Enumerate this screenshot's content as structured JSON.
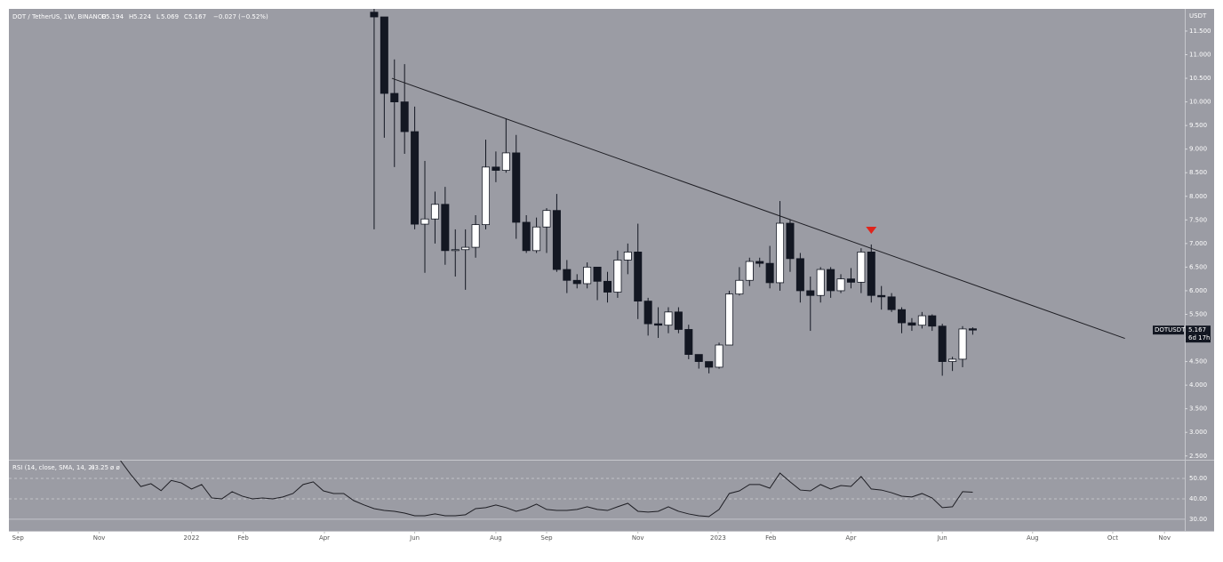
{
  "chart_data": {
    "type": "candlestick",
    "title": "DOT / TetherUS, 1W, BINANCE",
    "change": "−0.027 (−0.52%)",
    "ohlc_letters": [
      "O",
      "H",
      "L",
      "C"
    ],
    "currency": "USDT",
    "symbol": "DOTUSDT",
    "countdown": "6d 17h",
    "up_color": "#ffffff",
    "down_color": "#131722",
    "background": "#9b9ca4",
    "categories": [
      null,
      null,
      null,
      null,
      null,
      null,
      null,
      null,
      null,
      null,
      null,
      null,
      null,
      null,
      null,
      null,
      null,
      null,
      null,
      null,
      null,
      null,
      null,
      null,
      null,
      null,
      null,
      null,
      null,
      null,
      null,
      null,
      null,
      null,
      null,
      null,
      null,
      null,
      null,
      null,
      null,
      null,
      null,
      null,
      null,
      null,
      null,
      null,
      null,
      null,
      null,
      null,
      null,
      null,
      null,
      null,
      null,
      null,
      null,
      null
    ],
    "open": [
      11.9,
      11.8,
      10.18,
      10.0,
      9.37,
      7.41,
      7.52,
      7.83,
      6.85,
      6.87,
      6.92,
      7.4,
      8.62,
      8.55,
      8.92,
      7.45,
      6.85,
      7.35,
      7.7,
      6.45,
      6.22,
      6.15,
      6.5,
      6.2,
      5.97,
      6.65,
      6.82,
      5.78,
      5.3,
      5.27,
      5.55,
      5.18,
      4.65,
      4.5,
      4.38,
      4.85,
      5.93,
      6.22,
      6.62,
      6.58,
      6.17,
      7.43,
      6.68,
      6.0,
      5.9,
      6.45,
      6.0,
      6.25,
      6.18,
      6.82,
      5.9,
      5.87,
      5.6,
      5.32,
      5.27,
      5.47,
      5.25,
      4.5,
      4.55,
      5.194
    ],
    "high": [
      12.05,
      11.8,
      10.9,
      10.8,
      9.9,
      8.75,
      8.1,
      8.2,
      7.3,
      7.3,
      7.6,
      9.2,
      8.95,
      9.65,
      9.3,
      7.6,
      7.55,
      7.75,
      8.05,
      6.65,
      6.35,
      6.6,
      6.5,
      6.4,
      6.85,
      7.0,
      7.42,
      5.85,
      5.65,
      5.65,
      5.65,
      5.28,
      4.65,
      4.5,
      4.9,
      6.0,
      6.5,
      6.7,
      6.7,
      6.95,
      7.9,
      7.5,
      6.8,
      6.3,
      6.5,
      6.5,
      6.35,
      6.48,
      6.9,
      6.98,
      6.1,
      5.95,
      5.65,
      5.42,
      5.55,
      5.5,
      5.3,
      4.6,
      5.25,
      5.224
    ],
    "low": [
      7.3,
      9.24,
      8.62,
      8.9,
      7.3,
      6.38,
      7.0,
      6.55,
      6.3,
      6.02,
      6.7,
      7.3,
      8.3,
      8.5,
      7.1,
      6.8,
      6.8,
      6.8,
      6.4,
      5.95,
      6.05,
      6.05,
      5.8,
      5.75,
      5.85,
      6.35,
      5.4,
      5.05,
      5.0,
      5.1,
      5.1,
      4.55,
      4.35,
      4.25,
      4.35,
      4.85,
      5.9,
      6.1,
      6.5,
      6.05,
      6.0,
      6.4,
      5.75,
      5.15,
      5.75,
      5.85,
      5.95,
      6.05,
      5.95,
      5.75,
      5.6,
      5.55,
      5.1,
      5.15,
      5.2,
      5.15,
      4.2,
      4.3,
      4.38,
      5.069
    ],
    "close": [
      11.8,
      10.18,
      10.0,
      9.37,
      7.41,
      7.52,
      7.83,
      6.85,
      6.87,
      6.92,
      7.4,
      8.62,
      8.55,
      8.92,
      7.45,
      6.85,
      7.35,
      7.7,
      6.45,
      6.22,
      6.15,
      6.5,
      6.2,
      5.97,
      6.65,
      6.82,
      5.78,
      5.3,
      5.27,
      5.55,
      5.18,
      4.65,
      4.5,
      4.38,
      4.85,
      5.93,
      6.22,
      6.62,
      6.58,
      6.17,
      7.43,
      6.68,
      6.0,
      5.9,
      6.45,
      6.0,
      6.25,
      6.18,
      6.82,
      5.9,
      5.87,
      5.6,
      5.32,
      5.27,
      5.47,
      5.25,
      4.5,
      4.55,
      5.19,
      5.167
    ],
    "xlim": [
      -36.0,
      79.9
    ],
    "ylim": [
      2.42,
      11.97
    ],
    "yticks": [
      {
        "value": 2.5,
        "label": "2.500"
      },
      {
        "value": 3,
        "label": "3.000"
      },
      {
        "value": 3.5,
        "label": "3.500"
      },
      {
        "value": 4,
        "label": "4.000"
      },
      {
        "value": 4.5,
        "label": "4.500"
      },
      {
        "value": 5,
        "label": "5.000"
      },
      {
        "value": 5.5,
        "label": "5.500"
      },
      {
        "value": 6,
        "label": "6.000"
      },
      {
        "value": 6.5,
        "label": "6.500"
      },
      {
        "value": 7,
        "label": "7.000"
      },
      {
        "value": 7.5,
        "label": "7.500"
      },
      {
        "value": 8,
        "label": "8.000"
      },
      {
        "value": 8.5,
        "label": "8.500"
      },
      {
        "value": 9,
        "label": "9.000"
      },
      {
        "value": 9.5,
        "label": "9.500"
      },
      {
        "value": 10,
        "label": "10.000"
      },
      {
        "value": 10.5,
        "label": "10.500"
      },
      {
        "value": 11,
        "label": "11.000"
      },
      {
        "value": 11.5,
        "label": "11.500"
      }
    ],
    "xticks": [
      {
        "value": -35.1,
        "label": "Sep"
      },
      {
        "value": -27.1,
        "label": "Nov"
      },
      {
        "value": -18.0,
        "label": "2022"
      },
      {
        "value": -12.9,
        "label": "Feb"
      },
      {
        "value": -4.9,
        "label": "Apr"
      },
      {
        "value": 4.0,
        "label": "Jun"
      },
      {
        "value": 12.0,
        "label": "Aug"
      },
      {
        "value": 17.0,
        "label": "Sep"
      },
      {
        "value": 26.0,
        "label": "Nov"
      },
      {
        "value": 33.9,
        "label": "2023"
      },
      {
        "value": 39.1,
        "label": "Feb"
      },
      {
        "value": 47.0,
        "label": "Apr"
      },
      {
        "value": 56.0,
        "label": "Jun"
      },
      {
        "value": 64.9,
        "label": "Aug"
      },
      {
        "value": 72.8,
        "label": "Oct"
      },
      {
        "value": 77.9,
        "label": "Nov"
      }
    ],
    "trendline": {
      "x": [
        1.75,
        74.0
      ],
      "y": [
        10.5,
        4.99
      ],
      "color": "#1e1e24"
    },
    "marker": {
      "x": 49,
      "y": 7.28,
      "color": "#e0241b"
    },
    "rsi": {
      "name": "RSI (14, close, SMA, 14, 2)",
      "flags": "ø ø",
      "color": "#1e1e24",
      "ylim": [
        24.3,
        58.7
      ],
      "yticks": [
        {
          "value": 30,
          "label": "30.00"
        },
        {
          "value": 40,
          "label": "40.00"
        },
        {
          "value": 50,
          "label": "50.00"
        }
      ],
      "x": [
        -25,
        -24,
        -23,
        -22,
        -21,
        -20,
        -19,
        -18,
        -17,
        -16,
        -15,
        -14,
        -13,
        -12,
        -11,
        -10,
        -9,
        -8,
        -7,
        -6,
        -5,
        -4,
        -3,
        -2,
        -1,
        0,
        1,
        2,
        3,
        4,
        5,
        6,
        7,
        8,
        9,
        10,
        11,
        12,
        13,
        14,
        15,
        16,
        17,
        18,
        19,
        20,
        21,
        22,
        23,
        24,
        25,
        26,
        27,
        28,
        29,
        30,
        31,
        32,
        33,
        34,
        35,
        36,
        37,
        38,
        39,
        40,
        41,
        42,
        43,
        44,
        45,
        46,
        47,
        48,
        49,
        50,
        51,
        52,
        53,
        54,
        55,
        56,
        57,
        58,
        59
      ],
      "values": [
        58.7,
        52,
        46,
        47.4,
        44,
        49,
        47.8,
        44.8,
        47,
        40.4,
        40,
        43.5,
        41.3,
        40,
        40.4,
        40,
        40.9,
        42.6,
        47,
        48.3,
        43.9,
        42.6,
        42.6,
        39.1,
        37,
        35.2,
        34.3,
        33.9,
        33,
        31.7,
        31.7,
        32.6,
        31.7,
        31.7,
        32.2,
        35.2,
        35.7,
        37,
        35.7,
        33.9,
        35.2,
        37.4,
        34.8,
        34.3,
        34.3,
        34.8,
        36.1,
        34.8,
        34.3,
        36.1,
        37.8,
        33.9,
        33.5,
        33.9,
        36.1,
        33.9,
        32.6,
        31.7,
        31.3,
        34.8,
        42.6,
        43.9,
        47,
        47,
        45.2,
        52.6,
        48.3,
        44.3,
        43.9,
        47,
        44.8,
        46.5,
        46.1,
        50.9,
        44.8,
        44.3,
        43,
        41.3,
        40.9,
        42.6,
        40.4,
        35.7,
        36.1,
        43.5,
        43.25
      ]
    }
  }
}
